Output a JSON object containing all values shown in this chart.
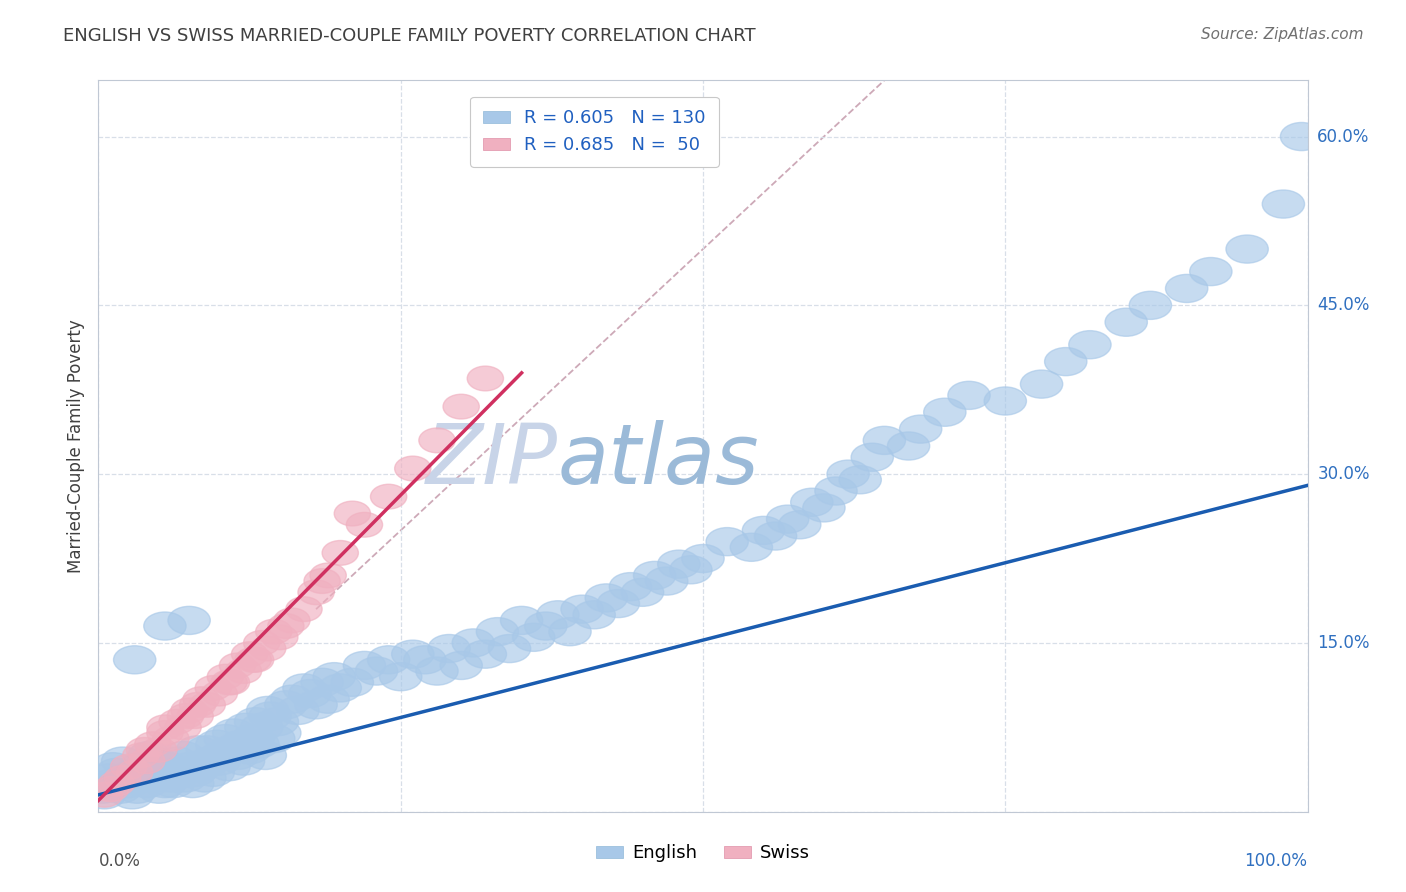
{
  "title": "ENGLISH VS SWISS MARRIED-COUPLE FAMILY POVERTY CORRELATION CHART",
  "source": "Source: ZipAtlas.com",
  "ylabel": "Married-Couple Family Poverty",
  "xlim": [
    0,
    100
  ],
  "ylim": [
    0,
    65
  ],
  "y_tick_labels": [
    "15.0%",
    "30.0%",
    "45.0%",
    "60.0%"
  ],
  "y_tick_values": [
    15,
    30,
    45,
    60
  ],
  "color_english": "#A8C8E8",
  "color_swiss": "#F0B0C0",
  "color_english_line": "#1A5CB0",
  "color_swiss_line": "#D03060",
  "color_ref_line": "#C8A0B0",
  "title_color": "#404040",
  "source_color": "#707070",
  "axis_label_color": "#404040",
  "tick_label_color_x_left": "#505050",
  "tick_label_color_x_right": "#3070C0",
  "tick_label_color_y": "#3070C0",
  "legend_text_color": "#2060C0",
  "watermark_color_zip": "#C8D4E8",
  "watermark_color_atlas": "#9BBAD8",
  "grid_color": "#D8DFE8",
  "background_color": "#FFFFFF",
  "english_line_x": [
    0,
    100
  ],
  "english_line_y": [
    1.5,
    29.0
  ],
  "swiss_line_x": [
    0,
    35
  ],
  "swiss_line_y": [
    1.0,
    39.0
  ],
  "ref_line_x": [
    18,
    100
  ],
  "ref_line_y": [
    18,
    100
  ],
  "english_scatter_x": [
    0.3,
    0.5,
    0.8,
    1.0,
    1.2,
    1.5,
    1.8,
    2.0,
    2.2,
    2.5,
    2.8,
    3.0,
    3.2,
    3.5,
    3.8,
    4.0,
    4.2,
    4.5,
    4.8,
    5.0,
    5.2,
    5.5,
    5.8,
    6.0,
    6.2,
    6.5,
    6.8,
    7.0,
    7.2,
    7.5,
    7.8,
    8.0,
    8.2,
    8.5,
    8.8,
    9.0,
    9.2,
    9.5,
    9.8,
    10.0,
    10.2,
    10.5,
    10.8,
    11.0,
    11.2,
    11.5,
    11.8,
    12.0,
    12.2,
    12.5,
    12.8,
    13.0,
    13.2,
    13.5,
    13.8,
    14.0,
    14.2,
    14.5,
    14.8,
    15.0,
    15.5,
    16.0,
    16.5,
    17.0,
    17.5,
    18.0,
    18.5,
    19.0,
    19.5,
    20.0,
    21.0,
    22.0,
    23.0,
    24.0,
    25.0,
    26.0,
    27.0,
    28.0,
    29.0,
    30.0,
    31.0,
    32.0,
    33.0,
    34.0,
    35.0,
    36.0,
    37.0,
    38.0,
    39.0,
    40.0,
    41.0,
    42.0,
    43.0,
    44.0,
    45.0,
    46.0,
    47.0,
    48.0,
    49.0,
    50.0,
    52.0,
    54.0,
    55.0,
    56.0,
    57.0,
    58.0,
    59.0,
    60.0,
    61.0,
    62.0,
    63.0,
    64.0,
    65.0,
    67.0,
    68.0,
    70.0,
    72.0,
    75.0,
    78.0,
    80.0,
    82.0,
    85.0,
    87.0,
    90.0,
    92.0,
    95.0,
    98.0,
    99.5,
    5.5,
    7.5,
    3.0
  ],
  "english_scatter_y": [
    2.0,
    1.5,
    3.0,
    2.5,
    4.0,
    3.5,
    2.0,
    4.5,
    3.0,
    2.5,
    1.5,
    3.0,
    2.0,
    4.0,
    3.5,
    2.5,
    5.0,
    3.0,
    4.5,
    2.0,
    3.5,
    2.5,
    4.0,
    3.0,
    2.5,
    4.5,
    3.5,
    5.0,
    3.0,
    4.0,
    2.5,
    3.5,
    5.5,
    4.0,
    3.0,
    5.5,
    4.5,
    3.5,
    6.0,
    4.5,
    5.0,
    6.5,
    4.0,
    5.5,
    7.0,
    5.0,
    6.0,
    4.5,
    7.5,
    5.5,
    6.5,
    8.0,
    6.0,
    7.5,
    5.0,
    9.0,
    8.5,
    6.5,
    8.0,
    7.0,
    9.5,
    10.0,
    9.0,
    11.0,
    10.5,
    9.5,
    11.5,
    10.0,
    12.0,
    11.0,
    11.5,
    13.0,
    12.5,
    13.5,
    12.0,
    14.0,
    13.5,
    12.5,
    14.5,
    13.0,
    15.0,
    14.0,
    16.0,
    14.5,
    17.0,
    15.5,
    16.5,
    17.5,
    16.0,
    18.0,
    17.5,
    19.0,
    18.5,
    20.0,
    19.5,
    21.0,
    20.5,
    22.0,
    21.5,
    22.5,
    24.0,
    23.5,
    25.0,
    24.5,
    26.0,
    25.5,
    27.5,
    27.0,
    28.5,
    30.0,
    29.5,
    31.5,
    33.0,
    32.5,
    34.0,
    35.5,
    37.0,
    36.5,
    38.0,
    40.0,
    41.5,
    43.5,
    45.0,
    46.5,
    48.0,
    50.0,
    54.0,
    60.0,
    16.5,
    17.0,
    13.5
  ],
  "swiss_scatter_x": [
    0.5,
    1.0,
    1.5,
    2.0,
    2.5,
    3.0,
    3.5,
    4.0,
    4.5,
    5.0,
    5.5,
    6.0,
    6.5,
    7.0,
    7.5,
    8.0,
    8.5,
    9.0,
    9.5,
    10.0,
    10.5,
    11.0,
    11.5,
    12.0,
    12.5,
    13.0,
    13.5,
    14.0,
    14.5,
    15.0,
    16.0,
    17.0,
    18.0,
    19.0,
    20.0,
    22.0,
    24.0,
    26.0,
    28.0,
    30.0,
    32.0,
    5.5,
    8.2,
    10.8,
    12.8,
    15.5,
    3.8,
    18.5,
    21.0,
    7.2
  ],
  "swiss_scatter_y": [
    1.5,
    2.0,
    2.5,
    3.0,
    4.0,
    3.5,
    5.0,
    4.5,
    6.0,
    5.5,
    7.0,
    6.5,
    8.0,
    7.5,
    9.0,
    8.5,
    10.0,
    9.5,
    11.0,
    10.5,
    12.0,
    11.5,
    13.0,
    12.5,
    14.0,
    13.5,
    15.0,
    14.5,
    16.0,
    15.5,
    17.0,
    18.0,
    19.5,
    21.0,
    23.0,
    25.5,
    28.0,
    30.5,
    33.0,
    36.0,
    38.5,
    7.5,
    9.5,
    11.5,
    13.5,
    16.5,
    5.5,
    20.5,
    26.5,
    8.5
  ]
}
